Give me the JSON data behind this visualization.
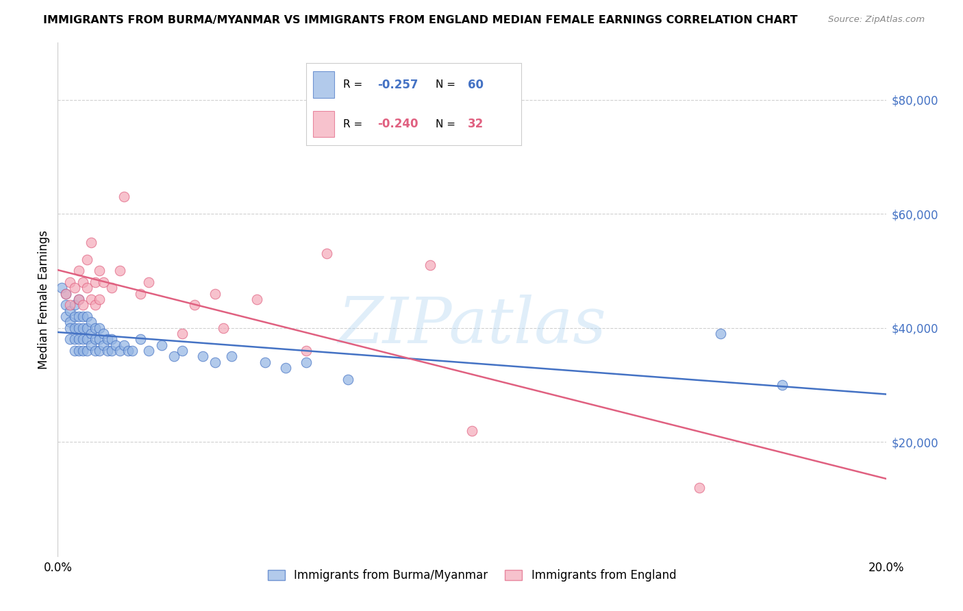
{
  "title": "IMMIGRANTS FROM BURMA/MYANMAR VS IMMIGRANTS FROM ENGLAND MEDIAN FEMALE EARNINGS CORRELATION CHART",
  "source": "Source: ZipAtlas.com",
  "ylabel": "Median Female Earnings",
  "xlim": [
    0.0,
    0.2
  ],
  "ylim": [
    0,
    90000
  ],
  "yticks": [
    0,
    20000,
    40000,
    60000,
    80000
  ],
  "ytick_labels": [
    "",
    "$20,000",
    "$40,000",
    "$60,000",
    "$80,000"
  ],
  "blue_color": "#92B4E3",
  "pink_color": "#F4A8B8",
  "blue_edge_color": "#4472C4",
  "pink_edge_color": "#E06080",
  "blue_line_color": "#4472C4",
  "pink_line_color": "#E06080",
  "right_tick_color": "#4472C4",
  "legend_blue_r": "-0.257",
  "legend_blue_n": "60",
  "legend_pink_r": "-0.240",
  "legend_pink_n": "32",
  "label_blue": "Immigrants from Burma/Myanmar",
  "label_pink": "Immigrants from England",
  "watermark": "ZIPatlas",
  "blue_x": [
    0.001,
    0.002,
    0.002,
    0.002,
    0.003,
    0.003,
    0.003,
    0.003,
    0.004,
    0.004,
    0.004,
    0.004,
    0.004,
    0.005,
    0.005,
    0.005,
    0.005,
    0.005,
    0.006,
    0.006,
    0.006,
    0.006,
    0.007,
    0.007,
    0.007,
    0.007,
    0.008,
    0.008,
    0.008,
    0.009,
    0.009,
    0.009,
    0.01,
    0.01,
    0.01,
    0.011,
    0.011,
    0.012,
    0.012,
    0.013,
    0.013,
    0.014,
    0.015,
    0.016,
    0.017,
    0.018,
    0.02,
    0.022,
    0.025,
    0.028,
    0.03,
    0.035,
    0.038,
    0.042,
    0.05,
    0.055,
    0.06,
    0.07,
    0.16,
    0.175
  ],
  "blue_y": [
    47000,
    46000,
    44000,
    42000,
    43000,
    41000,
    40000,
    38000,
    44000,
    42000,
    40000,
    38000,
    36000,
    45000,
    42000,
    40000,
    38000,
    36000,
    42000,
    40000,
    38000,
    36000,
    42000,
    40000,
    38000,
    36000,
    41000,
    39000,
    37000,
    40000,
    38000,
    36000,
    40000,
    38000,
    36000,
    39000,
    37000,
    38000,
    36000,
    38000,
    36000,
    37000,
    36000,
    37000,
    36000,
    36000,
    38000,
    36000,
    37000,
    35000,
    36000,
    35000,
    34000,
    35000,
    34000,
    33000,
    34000,
    31000,
    39000,
    30000
  ],
  "pink_x": [
    0.002,
    0.003,
    0.003,
    0.004,
    0.005,
    0.005,
    0.006,
    0.006,
    0.007,
    0.007,
    0.008,
    0.008,
    0.009,
    0.009,
    0.01,
    0.01,
    0.011,
    0.013,
    0.015,
    0.016,
    0.02,
    0.022,
    0.03,
    0.033,
    0.038,
    0.04,
    0.048,
    0.06,
    0.065,
    0.09,
    0.1,
    0.155
  ],
  "pink_y": [
    46000,
    48000,
    44000,
    47000,
    50000,
    45000,
    48000,
    44000,
    52000,
    47000,
    55000,
    45000,
    48000,
    44000,
    50000,
    45000,
    48000,
    47000,
    50000,
    63000,
    46000,
    48000,
    39000,
    44000,
    46000,
    40000,
    45000,
    36000,
    53000,
    51000,
    22000,
    12000
  ]
}
